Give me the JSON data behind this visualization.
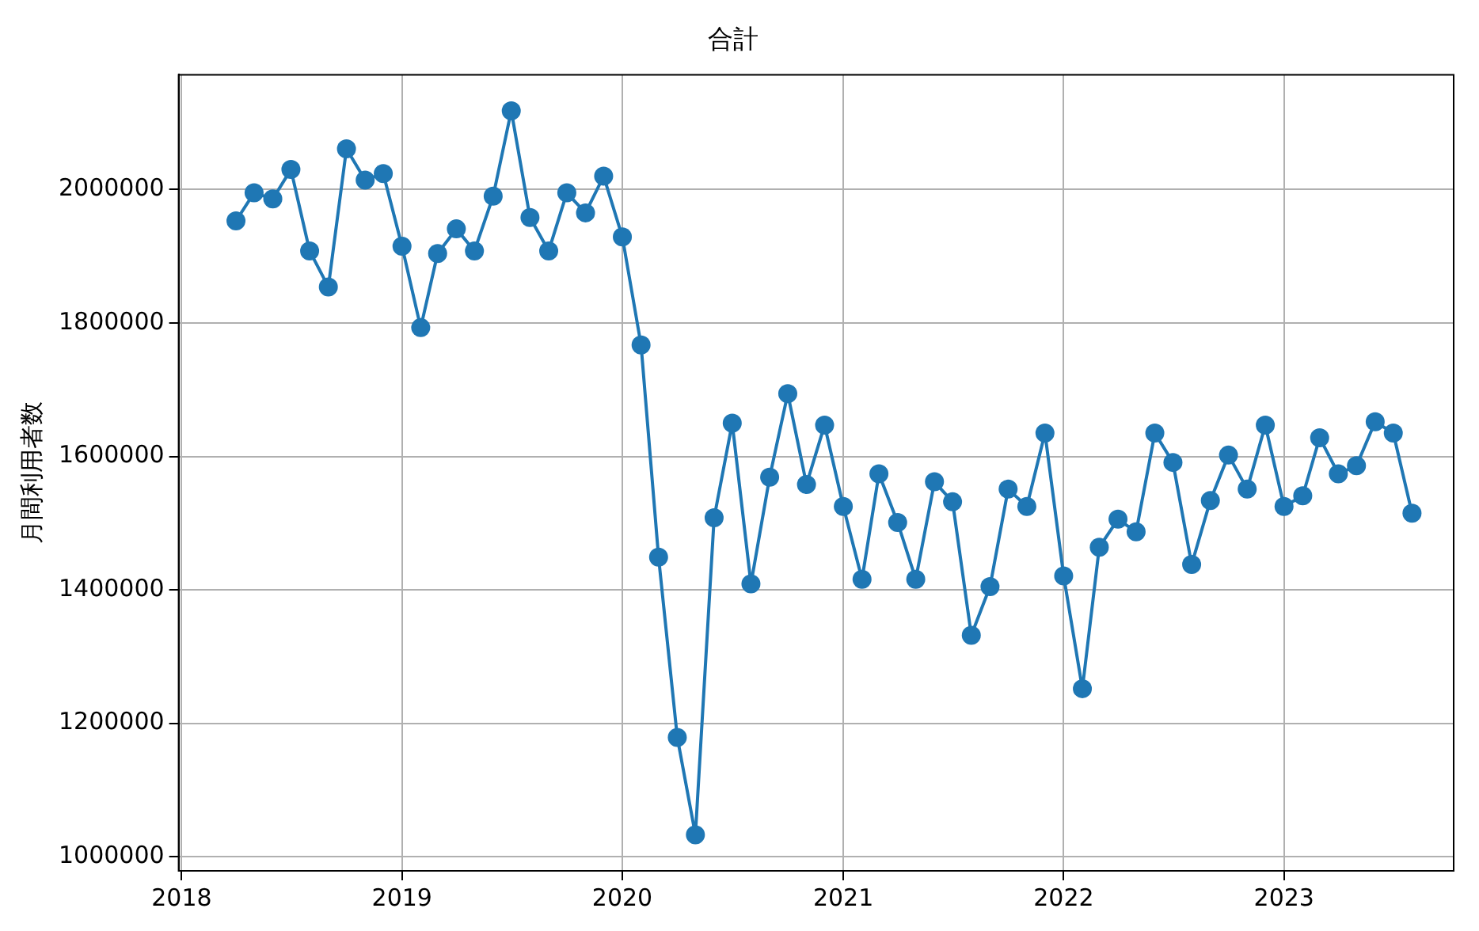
{
  "chart_data": {
    "type": "line",
    "title": "合計",
    "ylabel": "月間利用者数",
    "x": [
      "2018-04",
      "2018-05",
      "2018-06",
      "2018-07",
      "2018-08",
      "2018-09",
      "2018-10",
      "2018-11",
      "2018-12",
      "2019-01",
      "2019-02",
      "2019-03",
      "2019-04",
      "2019-05",
      "2019-06",
      "2019-07",
      "2019-08",
      "2019-09",
      "2019-10",
      "2019-11",
      "2019-12",
      "2020-01",
      "2020-02",
      "2020-03",
      "2020-04",
      "2020-05",
      "2020-06",
      "2020-07",
      "2020-08",
      "2020-09",
      "2020-10",
      "2020-11",
      "2020-12",
      "2021-01",
      "2021-02",
      "2021-03",
      "2021-04",
      "2021-05",
      "2021-06",
      "2021-07",
      "2021-08",
      "2021-09",
      "2021-10",
      "2021-11",
      "2021-12",
      "2022-01",
      "2022-02",
      "2022-03",
      "2022-04",
      "2022-05",
      "2022-06",
      "2022-07",
      "2022-08",
      "2022-09",
      "2022-10",
      "2022-11",
      "2022-12",
      "2023-01",
      "2023-02",
      "2023-03",
      "2023-04",
      "2023-05",
      "2023-06",
      "2023-07",
      "2023-08"
    ],
    "series": [
      {
        "color": "#1f77b4",
        "values": [
          1953000,
          1995000,
          1986000,
          2030000,
          1908000,
          1854000,
          2061000,
          2014000,
          2024000,
          1915000,
          1793000,
          1904000,
          1941000,
          1908000,
          1990000,
          2118000,
          1958000,
          1908000,
          1995000,
          1965000,
          2020000,
          1929000,
          1767000,
          1449000,
          1179000,
          1033000,
          1508000,
          1650000,
          1409000,
          1569000,
          1694000,
          1558000,
          1647000,
          1525000,
          1416000,
          1574000,
          1501000,
          1416000,
          1562000,
          1532000,
          1332000,
          1405000,
          1551000,
          1525000,
          1635000,
          1421000,
          1252000,
          1464000,
          1506000,
          1487000,
          1635000,
          1591000,
          1438000,
          1534000,
          1602000,
          1551000,
          1647000,
          1525000,
          1541000,
          1628000,
          1574000,
          1586000,
          1652000,
          1635000,
          1515000
        ]
      }
    ],
    "xlim": [
      "2017-12-27",
      "2023-10-09"
    ],
    "xticks": [
      "2018",
      "2019",
      "2020",
      "2021",
      "2022",
      "2023"
    ],
    "ylim": [
      979000,
      2172000
    ],
    "yticks": [
      1000000,
      1200000,
      1400000,
      1600000,
      1800000,
      2000000
    ],
    "grid": true,
    "marker": "circle",
    "line_style": "solid",
    "legend": false
  }
}
